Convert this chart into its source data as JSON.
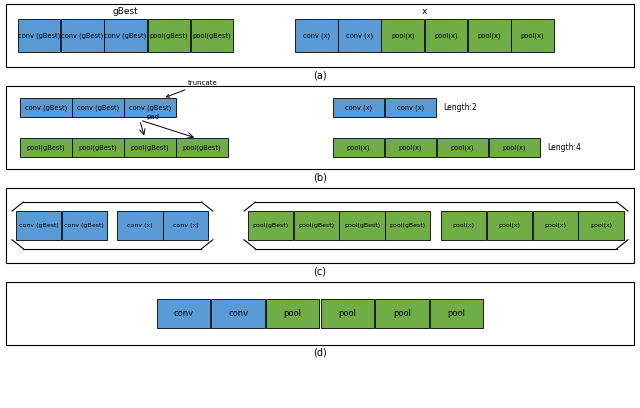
{
  "blue_color": "#5b9bd5",
  "green_color": "#70ad47",
  "bg_color": "white",
  "panel_a": {
    "gbest_label": "gBest",
    "x_label": "x",
    "gbest_boxes": [
      "conv (gBest)",
      "conv (gBest)",
      "conv (gBest)",
      "pool(gBest)",
      "pool(gBest)"
    ],
    "gbest_colors": [
      "blue",
      "blue",
      "blue",
      "green",
      "green"
    ],
    "x_boxes": [
      "conv (x)",
      "conv (x)",
      "pool(x)",
      "pool(x)",
      "pool(x)",
      "pool(x)"
    ],
    "x_colors": [
      "blue",
      "blue",
      "green",
      "green",
      "green",
      "green"
    ]
  },
  "panel_b": {
    "truncate_label": "truncate",
    "pad_label": "pad",
    "gbest_top_boxes": [
      "conv (gBest)",
      "conv (gBest)",
      "conv (gBest)"
    ],
    "gbest_top_colors": [
      "blue",
      "blue",
      "blue"
    ],
    "gbest_bot_boxes": [
      "pool(gBest)",
      "pool(gBest)",
      "pool(gBest)",
      "pool(gBest)"
    ],
    "gbest_bot_colors": [
      "green",
      "green",
      "green",
      "green"
    ],
    "x_top_boxes": [
      "conv (x)",
      "conv (x)"
    ],
    "x_top_colors": [
      "blue",
      "blue"
    ],
    "x_top_label": "Length:2",
    "x_bot_boxes": [
      "pool(x)",
      "pool(x)",
      "pool(x)",
      "pool(x)"
    ],
    "x_bot_colors": [
      "green",
      "green",
      "green",
      "green"
    ],
    "x_bot_label": "Length:4"
  },
  "panel_c": {
    "left_boxes": [
      "conv (gBest)",
      "conv (gBest)",
      "conv (x)",
      "conv (x)"
    ],
    "left_colors": [
      "blue",
      "blue",
      "blue",
      "blue"
    ],
    "mid_boxes": [
      "pool(gBest)",
      "pool(gBest)",
      "pool(gBest)",
      "pool(gBest)"
    ],
    "mid_colors": [
      "green",
      "green",
      "green",
      "green"
    ],
    "right_boxes": [
      "pool(x)",
      "pool(x)",
      "pool(x)",
      "pool(x)"
    ],
    "right_colors": [
      "green",
      "green",
      "green",
      "green"
    ]
  },
  "panel_d": {
    "boxes": [
      "conv",
      "conv",
      "pool",
      "pool",
      "pool",
      "pool"
    ],
    "colors": [
      "blue",
      "blue",
      "green",
      "green",
      "green",
      "green"
    ]
  }
}
